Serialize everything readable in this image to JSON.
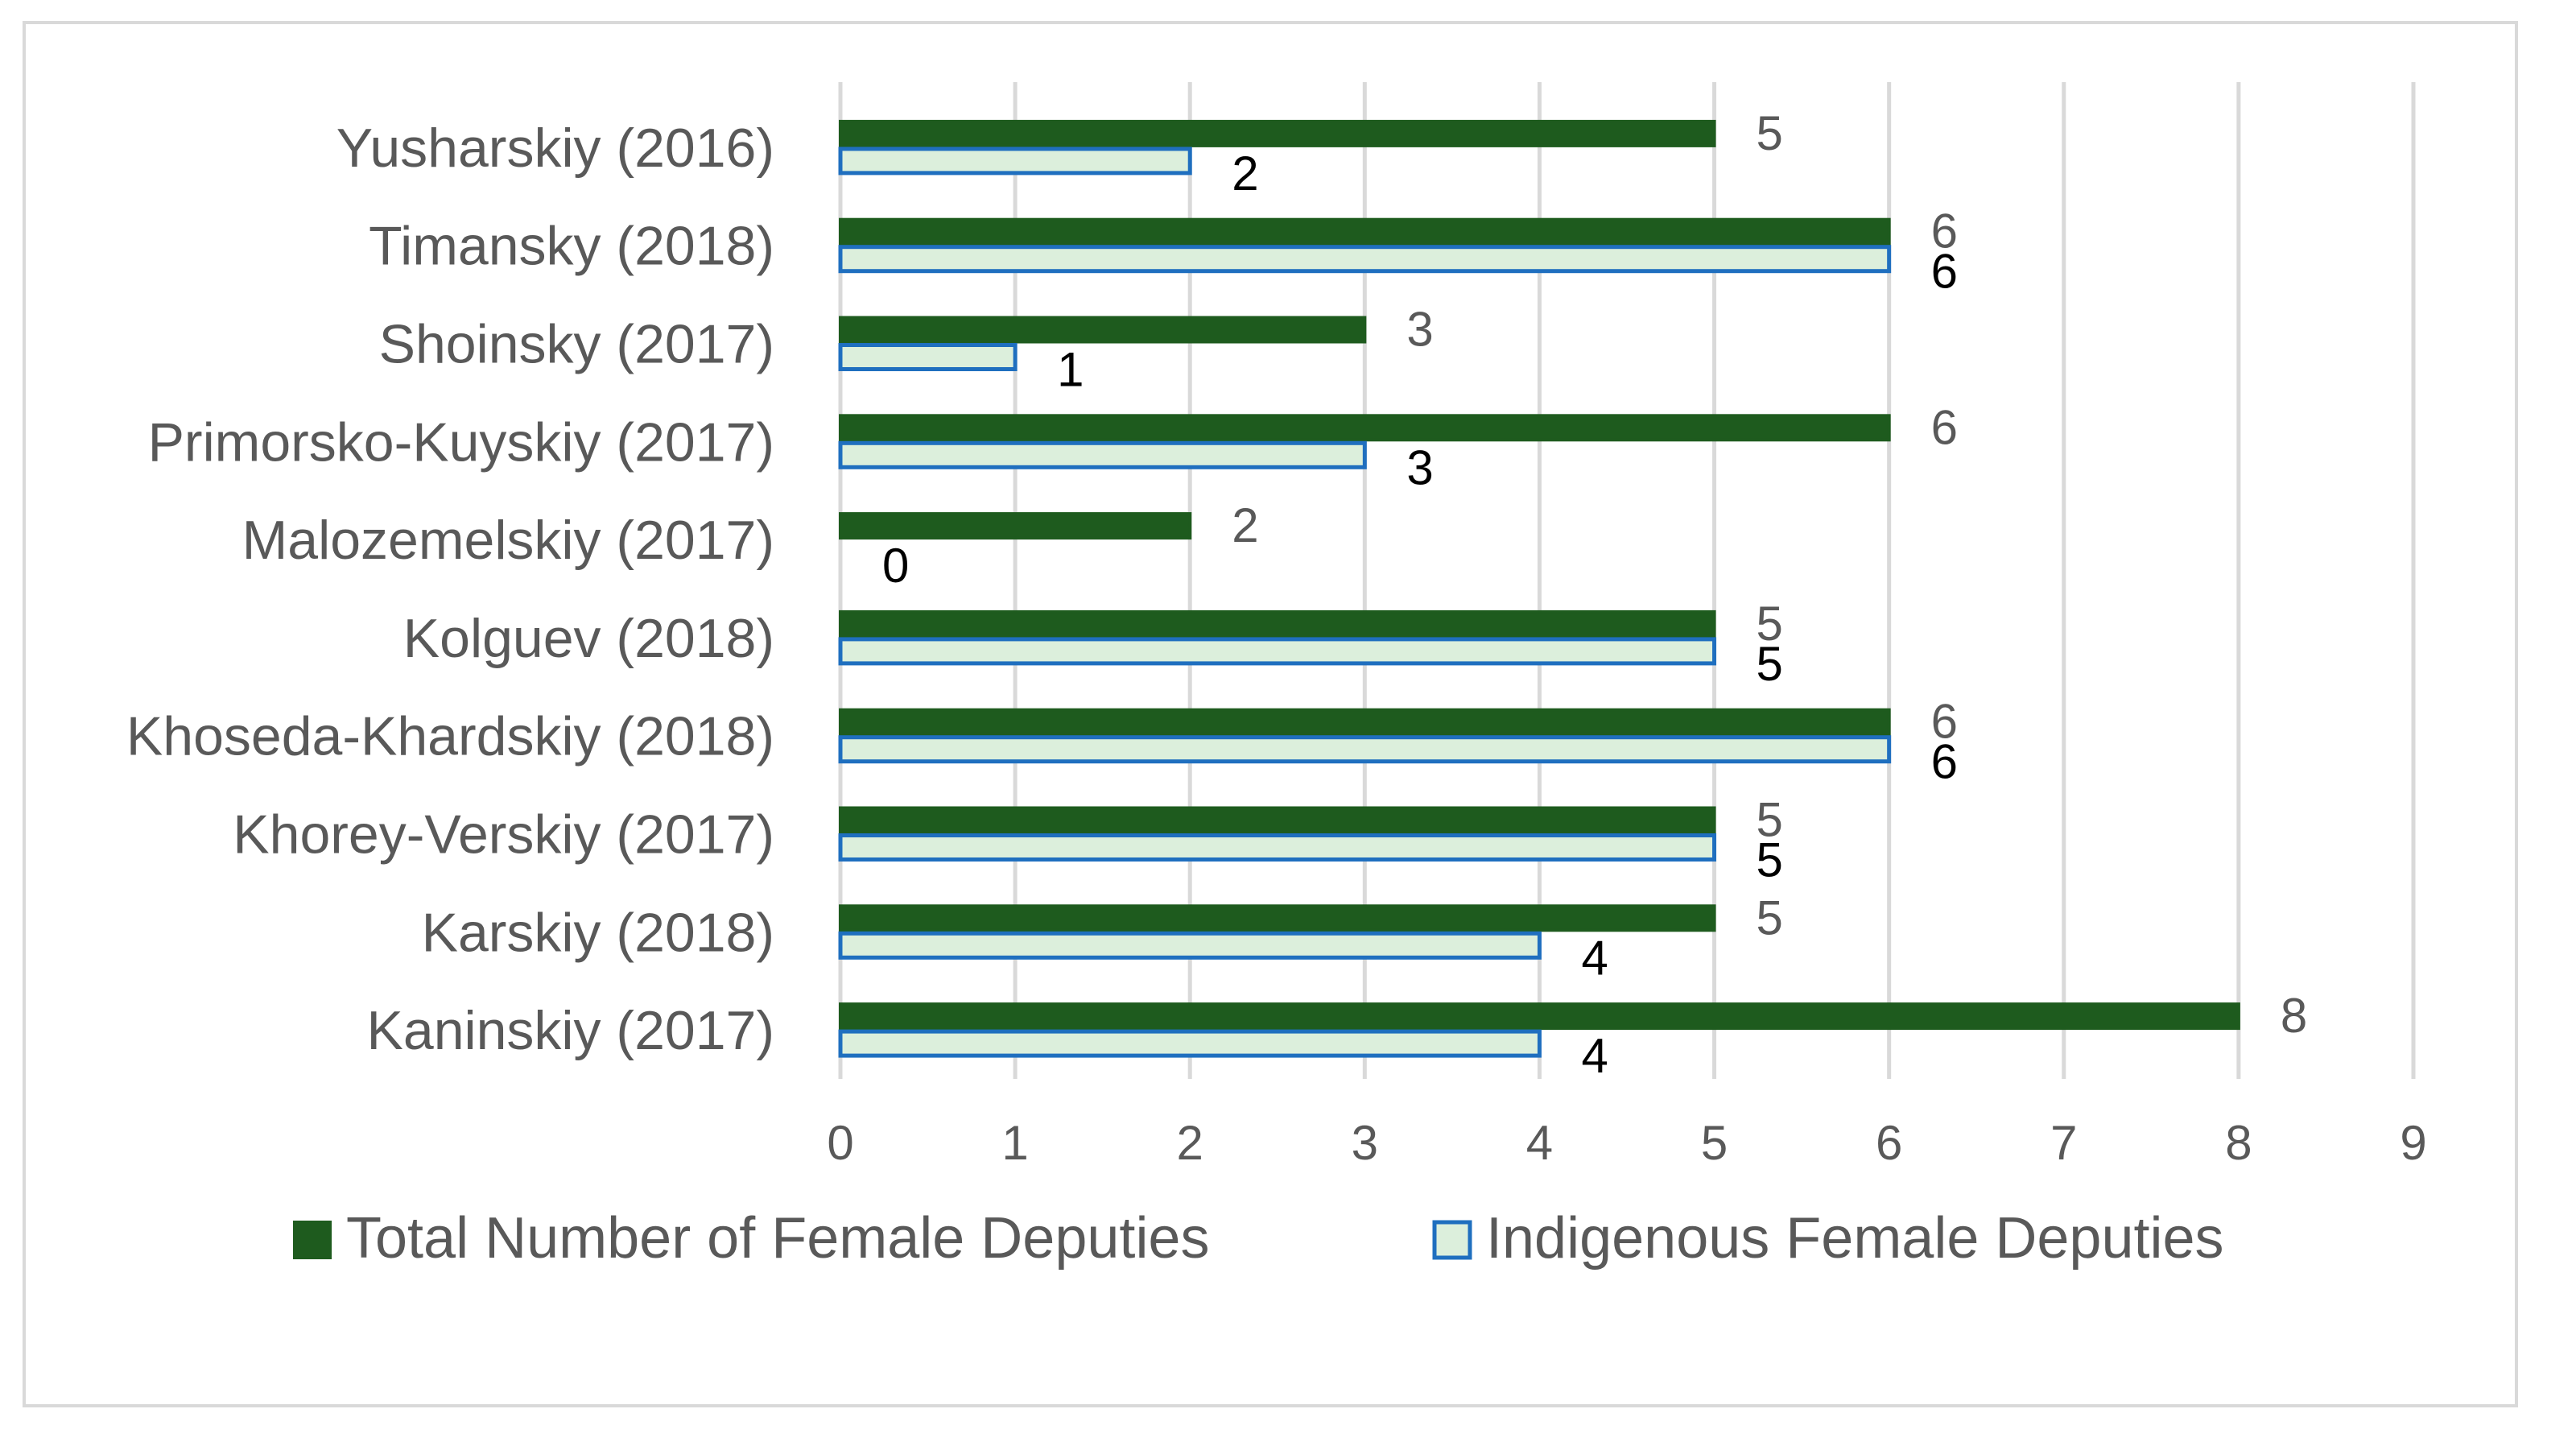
{
  "chart_data": {
    "type": "bar",
    "orientation": "horizontal",
    "categories": [
      "Yusharskiy (2016)",
      "Timansky (2018)",
      "Shoinsky (2017)",
      "Primorsko-Kuyskiy (2017)",
      "Malozemelskiy (2017)",
      "Kolguev (2018)",
      "Khoseda-Khardskiy (2018)",
      "Khorey-Verskiy (2017)",
      "Karskiy (2018)",
      "Kaninskiy (2017)"
    ],
    "series": [
      {
        "name": "Total Number of Female Deputies",
        "values": [
          5,
          6,
          3,
          6,
          2,
          5,
          6,
          5,
          5,
          8
        ],
        "fill": "#1e5b1e",
        "stroke": "#1e5b1e"
      },
      {
        "name": "Indigenous Female Deputies",
        "values": [
          2,
          6,
          1,
          3,
          0,
          5,
          6,
          5,
          4,
          4
        ],
        "fill": "#dcefdc",
        "stroke": "#1f6fbf"
      }
    ],
    "xlim": [
      0,
      9
    ],
    "xticks": [
      0,
      1,
      2,
      3,
      4,
      5,
      6,
      7,
      8,
      9
    ],
    "xlabel": "",
    "ylabel": "",
    "title": "",
    "grid": true,
    "legend_position": "bottom"
  }
}
